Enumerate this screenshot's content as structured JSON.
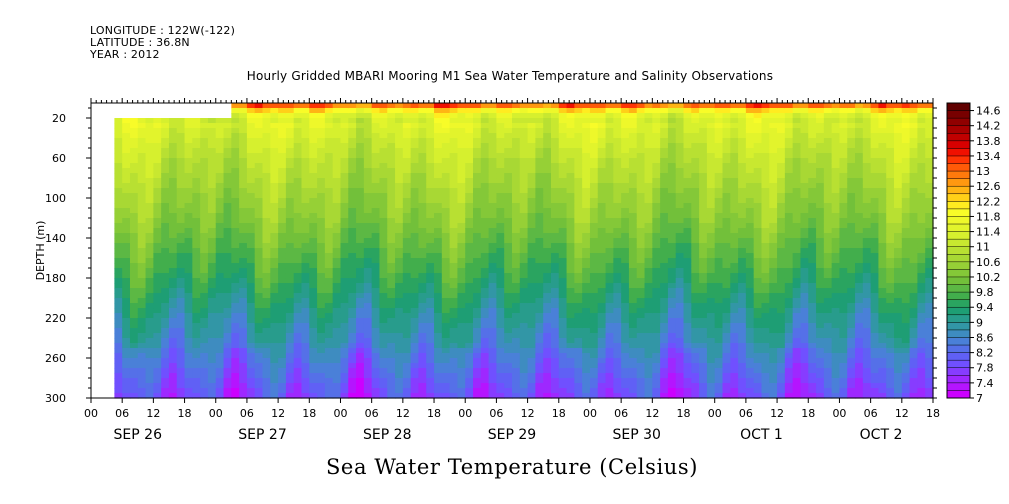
{
  "header": {
    "longitude": "LONGITUDE : 122W(-122)",
    "latitude": "LATITUDE : 36.8N",
    "year": "YEAR : 2012",
    "title": "Hourly Gridded MBARI Mooring M1 Sea Water Temperature and Salinity Observations"
  },
  "variable_title": "Sea Water Temperature (Celsius)",
  "chart_data": {
    "type": "heatmap",
    "title": "Hourly Gridded MBARI Mooring M1 Sea Water Temperature and Salinity Observations",
    "colorbar_title": "Sea Water Temperature (Celsius)",
    "ylabel": "DEPTH (m)",
    "xlabel": "",
    "x_unit": "hours from SEP 26 00:00 (2012)",
    "xlim_hours": [
      -6,
      156
    ],
    "ylim_depth_m": [
      5,
      300
    ],
    "y_inverted": true,
    "y_ticks": [
      20,
      60,
      100,
      140,
      180,
      220,
      260,
      300
    ],
    "x_hour_ticks": [
      {
        "h": -6,
        "label": "00"
      },
      {
        "h": 0,
        "label": "06"
      },
      {
        "h": 6,
        "label": "12"
      },
      {
        "h": 12,
        "label": "18"
      },
      {
        "h": 18,
        "label": "00"
      },
      {
        "h": 24,
        "label": "06"
      },
      {
        "h": 30,
        "label": "12"
      },
      {
        "h": 36,
        "label": "18"
      },
      {
        "h": 42,
        "label": "00"
      },
      {
        "h": 48,
        "label": "06"
      },
      {
        "h": 54,
        "label": "12"
      },
      {
        "h": 60,
        "label": "18"
      },
      {
        "h": 66,
        "label": "00"
      },
      {
        "h": 72,
        "label": "06"
      },
      {
        "h": 78,
        "label": "12"
      },
      {
        "h": 84,
        "label": "18"
      },
      {
        "h": 90,
        "label": "00"
      },
      {
        "h": 96,
        "label": "06"
      },
      {
        "h": 102,
        "label": "12"
      },
      {
        "h": 108,
        "label": "18"
      },
      {
        "h": 114,
        "label": "00"
      },
      {
        "h": 120,
        "label": "06"
      },
      {
        "h": 126,
        "label": "12"
      },
      {
        "h": 132,
        "label": "18"
      },
      {
        "h": 138,
        "label": "00"
      },
      {
        "h": 144,
        "label": "06"
      },
      {
        "h": 150,
        "label": "12"
      },
      {
        "h": 156,
        "label": "18"
      }
    ],
    "day_labels": [
      {
        "h": 3,
        "label": "SEP 26"
      },
      {
        "h": 27,
        "label": "SEP 27"
      },
      {
        "h": 51,
        "label": "SEP 28"
      },
      {
        "h": 75,
        "label": "SEP 29"
      },
      {
        "h": 99,
        "label": "SEP 30"
      },
      {
        "h": 123,
        "label": "OCT  1"
      },
      {
        "h": 146,
        "label": "OCT  2"
      }
    ],
    "colorbar": {
      "min": 7,
      "max": 14.8,
      "step": 0.2,
      "labels": [
        "14.6",
        "14.2",
        "13.8",
        "13.4",
        "13",
        "12.6",
        "12.2",
        "11.8",
        "11.4",
        "11",
        "10.6",
        "10.2",
        "9.8",
        "9.4",
        "9",
        "8.6",
        "8.2",
        "7.8",
        "7.4",
        "7"
      ],
      "colors": [
        "#cc00ff",
        "#b514ff",
        "#9e28ff",
        "#873cff",
        "#7050ff",
        "#6060f5",
        "#5570e8",
        "#4a80d8",
        "#3e8cc0",
        "#3296a6",
        "#289c8c",
        "#1e9e74",
        "#2aa460",
        "#42ae4c",
        "#5cb844",
        "#72c03a",
        "#84c838",
        "#96d036",
        "#a8d834",
        "#b8e032",
        "#c8e830",
        "#d6f02e",
        "#e2f42c",
        "#eef82a",
        "#f8fc28",
        "#ffec20",
        "#ffd018",
        "#ffb414",
        "#ff9810",
        "#ff7a0c",
        "#ff5a08",
        "#ff3404",
        "#f01000",
        "#d80000",
        "#c00000",
        "#a80000",
        "#900000",
        "#780000",
        "#600000"
      ]
    },
    "fill_value_note": "",
    "data_start_hours": {
      "depth_gt_20m": -1.5,
      "depth_lte_20m": 21
    },
    "depth_profile_mean": [
      {
        "depth": 5,
        "temp": 13.8
      },
      {
        "depth": 10,
        "temp": 12.6
      },
      {
        "depth": 15,
        "temp": 11.9
      },
      {
        "depth": 20,
        "temp": 11.6
      },
      {
        "depth": 30,
        "temp": 11.35
      },
      {
        "depth": 40,
        "temp": 11.2
      },
      {
        "depth": 60,
        "temp": 10.95
      },
      {
        "depth": 80,
        "temp": 10.75
      },
      {
        "depth": 100,
        "temp": 10.55
      },
      {
        "depth": 120,
        "temp": 10.35
      },
      {
        "depth": 140,
        "temp": 10.1
      },
      {
        "depth": 160,
        "temp": 9.85
      },
      {
        "depth": 180,
        "temp": 9.6
      },
      {
        "depth": 200,
        "temp": 9.3
      },
      {
        "depth": 220,
        "temp": 9.0
      },
      {
        "depth": 240,
        "temp": 8.75
      },
      {
        "depth": 260,
        "temp": 8.45
      },
      {
        "depth": 280,
        "temp": 8.15
      },
      {
        "depth": 300,
        "temp": 7.85
      }
    ]
  }
}
